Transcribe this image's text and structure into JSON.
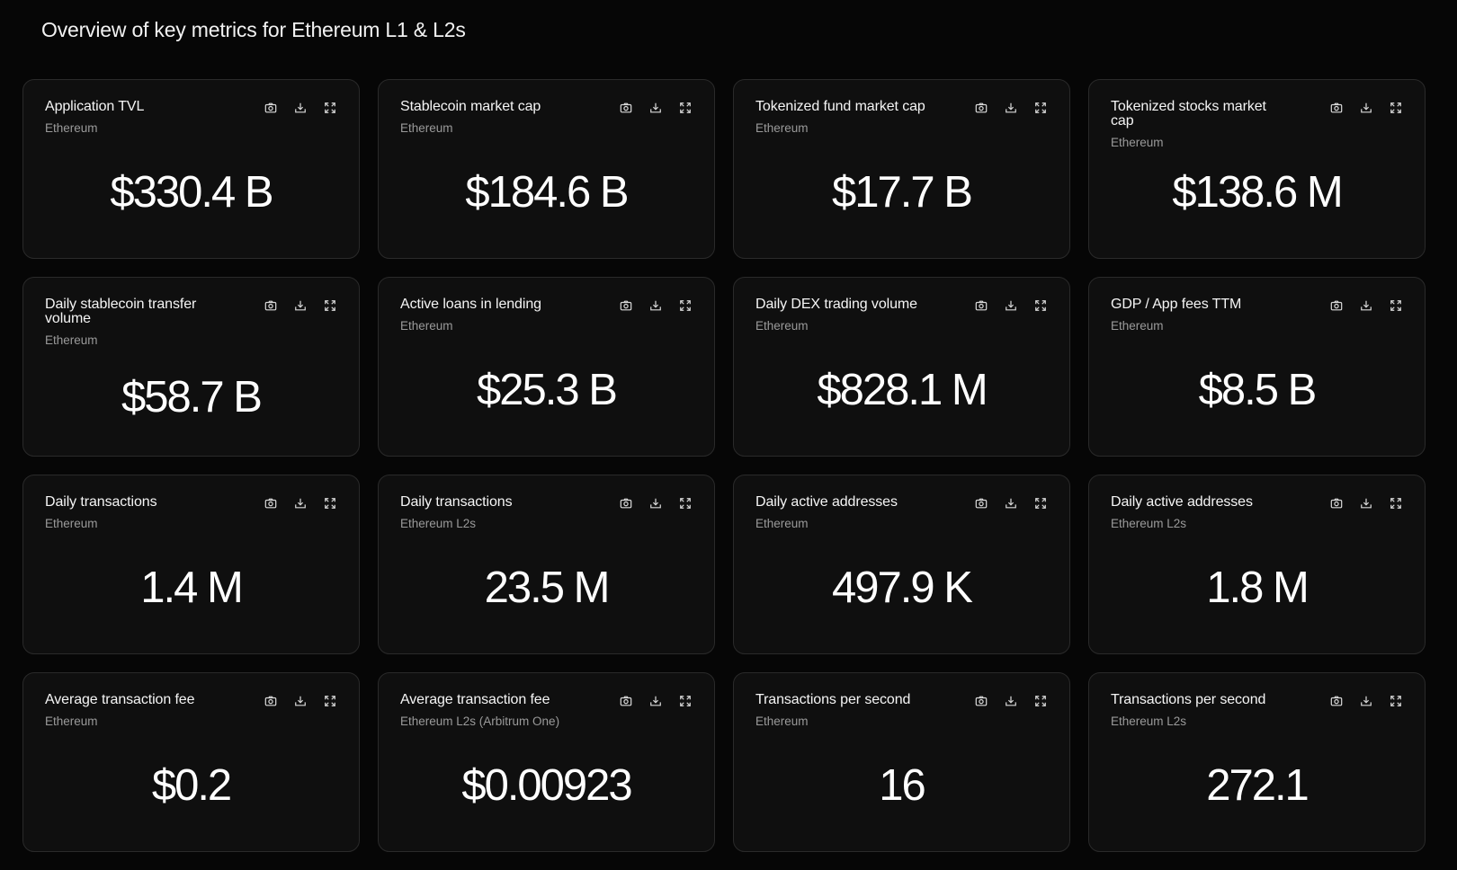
{
  "page": {
    "title": "Overview of key metrics for Ethereum L1 & L2s"
  },
  "card_icons": [
    "camera-icon",
    "download-icon",
    "expand-icon"
  ],
  "cards": [
    {
      "title": "Application TVL",
      "subtitle": "Ethereum",
      "value": "$330.4 B"
    },
    {
      "title": "Stablecoin market cap",
      "subtitle": "Ethereum",
      "value": "$184.6 B"
    },
    {
      "title": "Tokenized fund market cap",
      "subtitle": "Ethereum",
      "value": "$17.7 B"
    },
    {
      "title": "Tokenized stocks market cap",
      "subtitle": "Ethereum",
      "value": "$138.6 M"
    },
    {
      "title": "Daily stablecoin transfer volume",
      "subtitle": "Ethereum",
      "value": "$58.7 B"
    },
    {
      "title": "Active loans in lending",
      "subtitle": "Ethereum",
      "value": "$25.3 B"
    },
    {
      "title": "Daily DEX trading volume",
      "subtitle": "Ethereum",
      "value": "$828.1 M"
    },
    {
      "title": "GDP / App fees TTM",
      "subtitle": "Ethereum",
      "value": "$8.5 B"
    },
    {
      "title": "Daily transactions",
      "subtitle": "Ethereum",
      "value": "1.4 M"
    },
    {
      "title": "Daily transactions",
      "subtitle": "Ethereum L2s",
      "value": "23.5 M"
    },
    {
      "title": "Daily active addresses",
      "subtitle": "Ethereum",
      "value": "497.9 K"
    },
    {
      "title": "Daily active addresses",
      "subtitle": "Ethereum L2s",
      "value": "1.8 M"
    },
    {
      "title": "Average transaction fee",
      "subtitle": "Ethereum",
      "value": "$0.2"
    },
    {
      "title": "Average transaction fee",
      "subtitle": "Ethereum L2s (Arbitrum One)",
      "value": "$0.00923"
    },
    {
      "title": "Transactions per second",
      "subtitle": "Ethereum",
      "value": "16"
    },
    {
      "title": "Transactions per second",
      "subtitle": "Ethereum L2s",
      "value": "272.1"
    }
  ]
}
